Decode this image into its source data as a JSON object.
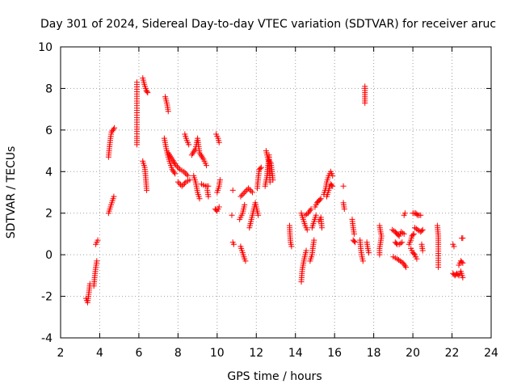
{
  "chart_data": {
    "type": "scatter",
    "title": "Day 301 of 2024, Sidereal Day-to-day VTEC variation (SDTVAR) for receiver aruc",
    "xlabel": "GPS time / hours",
    "ylabel": "SDTVAR / TECUs",
    "xlim": [
      2,
      24
    ],
    "ylim": [
      -4,
      10
    ],
    "xticks": [
      2,
      4,
      6,
      8,
      10,
      12,
      14,
      16,
      18,
      20,
      22,
      24
    ],
    "yticks": [
      -4,
      -2,
      0,
      2,
      4,
      6,
      8,
      10
    ],
    "grid": true,
    "marker": "+",
    "marker_color": "#ff0000",
    "series": [
      {
        "name": "SDTVAR",
        "segments": [
          [
            [
              3.3,
              -2.1
            ],
            [
              3.38,
              -2.3
            ],
            [
              3.45,
              -1.8
            ],
            [
              3.5,
              -1.4
            ]
          ],
          [
            [
              3.7,
              -1.5
            ],
            [
              3.75,
              -1.0
            ],
            [
              3.8,
              -0.6
            ],
            [
              3.85,
              -0.3
            ]
          ],
          [
            [
              3.8,
              0.5
            ],
            [
              3.9,
              0.7
            ]
          ],
          [
            [
              4.45,
              2.0
            ],
            [
              4.55,
              2.3
            ],
            [
              4.65,
              2.6
            ],
            [
              4.72,
              2.8
            ]
          ],
          [
            [
              4.45,
              4.7
            ],
            [
              4.5,
              5.2
            ],
            [
              4.55,
              5.6
            ],
            [
              4.6,
              5.9
            ],
            [
              4.75,
              6.1
            ]
          ],
          [
            [
              5.9,
              8.3
            ],
            [
              5.9,
              5.7
            ],
            [
              5.9,
              5.3
            ]
          ],
          [
            [
              6.2,
              8.5
            ],
            [
              6.28,
              8.2
            ],
            [
              6.38,
              7.9
            ],
            [
              6.45,
              7.8
            ]
          ],
          [
            [
              6.2,
              4.5
            ],
            [
              6.3,
              4.2
            ],
            [
              6.35,
              3.7
            ],
            [
              6.4,
              3.1
            ]
          ],
          [
            [
              7.35,
              7.6
            ],
            [
              7.45,
              7.2
            ],
            [
              7.5,
              6.9
            ]
          ],
          [
            [
              7.3,
              5.6
            ],
            [
              7.4,
              5.1
            ],
            [
              7.5,
              4.7
            ],
            [
              7.6,
              4.4
            ],
            [
              7.7,
              4.1
            ],
            [
              7.85,
              3.9
            ]
          ],
          [
            [
              7.5,
              4.9
            ],
            [
              7.7,
              4.6
            ],
            [
              7.9,
              4.3
            ],
            [
              8.1,
              4.1
            ],
            [
              8.3,
              4.0
            ],
            [
              8.5,
              3.8
            ]
          ],
          [
            [
              8.0,
              3.5
            ],
            [
              8.2,
              3.3
            ],
            [
              8.4,
              3.5
            ],
            [
              8.6,
              3.6
            ]
          ],
          [
            [
              8.35,
              5.8
            ],
            [
              8.45,
              5.5
            ],
            [
              8.55,
              5.3
            ]
          ],
          [
            [
              8.8,
              3.8
            ],
            [
              8.9,
              3.5
            ],
            [
              9.0,
              3.0
            ],
            [
              9.1,
              2.7
            ]
          ],
          [
            [
              8.7,
              4.8
            ],
            [
              8.9,
              5.1
            ],
            [
              9.0,
              5.6
            ],
            [
              9.1,
              4.9
            ],
            [
              9.3,
              4.6
            ],
            [
              9.45,
              4.3
            ]
          ],
          [
            [
              9.2,
              3.4
            ],
            [
              9.4,
              3.3
            ],
            [
              9.55,
              3.3
            ]
          ],
          [
            [
              9.55,
              2.8
            ],
            [
              9.5,
              3.1
            ]
          ],
          [
            [
              9.95,
              5.8
            ],
            [
              10.05,
              5.6
            ],
            [
              10.1,
              5.4
            ]
          ],
          [
            [
              9.9,
              2.2
            ],
            [
              10.0,
              2.1
            ],
            [
              10.1,
              2.3
            ]
          ],
          [
            [
              10.0,
              3.0
            ],
            [
              10.1,
              3.3
            ],
            [
              10.15,
              3.6
            ]
          ],
          [
            [
              10.8,
              3.1
            ]
          ],
          [
            [
              10.8,
              0.6
            ],
            [
              10.85,
              0.5
            ]
          ],
          [
            [
              10.75,
              1.9
            ]
          ],
          [
            [
              11.2,
              0.4
            ],
            [
              11.3,
              0.1
            ],
            [
              11.4,
              -0.2
            ],
            [
              11.45,
              -0.3
            ]
          ],
          [
            [
              11.15,
              1.7
            ],
            [
              11.3,
              2.0
            ],
            [
              11.4,
              2.4
            ]
          ],
          [
            [
              11.2,
              2.8
            ],
            [
              11.4,
              3.0
            ],
            [
              11.6,
              3.2
            ],
            [
              11.8,
              3.0
            ]
          ],
          [
            [
              11.65,
              1.3
            ],
            [
              11.75,
              1.7
            ],
            [
              11.85,
              2.1
            ],
            [
              11.95,
              2.5
            ],
            [
              12.1,
              1.9
            ]
          ],
          [
            [
              12.05,
              3.2
            ],
            [
              12.1,
              3.7
            ],
            [
              12.15,
              4.1
            ],
            [
              12.25,
              4.2
            ]
          ],
          [
            [
              12.45,
              3.3
            ],
            [
              12.55,
              3.8
            ],
            [
              12.6,
              4.3
            ],
            [
              12.65,
              4.8
            ],
            [
              12.7,
              3.5
            ]
          ],
          [
            [
              12.5,
              5.0
            ],
            [
              12.6,
              4.6
            ],
            [
              12.75,
              4.4
            ],
            [
              12.8,
              4.0
            ],
            [
              12.85,
              3.6
            ]
          ],
          [
            [
              13.7,
              1.4
            ],
            [
              13.72,
              1.0
            ],
            [
              13.75,
              0.6
            ],
            [
              13.8,
              0.4
            ]
          ],
          [
            [
              14.3,
              -1.3
            ],
            [
              14.35,
              -0.7
            ],
            [
              14.45,
              -0.2
            ],
            [
              14.55,
              0.2
            ]
          ],
          [
            [
              14.3,
              2.0
            ],
            [
              14.4,
              1.7
            ],
            [
              14.5,
              1.4
            ],
            [
              14.6,
              1.2
            ]
          ],
          [
            [
              14.5,
              1.9
            ],
            [
              14.65,
              2.0
            ],
            [
              14.8,
              2.2
            ]
          ],
          [
            [
              14.75,
              -0.3
            ],
            [
              14.85,
              0.0
            ],
            [
              14.9,
              0.4
            ],
            [
              14.95,
              0.7
            ]
          ],
          [
            [
              14.85,
              1.3
            ],
            [
              14.95,
              1.6
            ],
            [
              15.05,
              1.9
            ]
          ],
          [
            [
              15.0,
              2.3
            ],
            [
              15.1,
              2.5
            ],
            [
              15.2,
              2.6
            ],
            [
              15.3,
              2.7
            ]
          ],
          [
            [
              15.2,
              1.6
            ],
            [
              15.3,
              1.8
            ],
            [
              15.35,
              1.3
            ]
          ],
          [
            [
              15.45,
              2.9
            ],
            [
              15.55,
              3.2
            ],
            [
              15.6,
              3.5
            ],
            [
              15.7,
              3.8
            ],
            [
              15.8,
              4.0
            ],
            [
              15.9,
              3.8
            ]
          ],
          [
            [
              15.6,
              2.8
            ],
            [
              15.7,
              3.1
            ],
            [
              15.8,
              3.4
            ],
            [
              15.9,
              3.3
            ]
          ],
          [
            [
              16.45,
              3.3
            ]
          ],
          [
            [
              16.45,
              2.5
            ],
            [
              16.5,
              2.2
            ]
          ],
          [
            [
              16.9,
              1.7
            ],
            [
              16.95,
              1.3
            ],
            [
              17.0,
              1.0
            ]
          ],
          [
            [
              16.95,
              0.7
            ],
            [
              17.05,
              0.6
            ]
          ],
          [
            [
              17.3,
              0.7
            ],
            [
              17.35,
              0.2
            ],
            [
              17.4,
              -0.1
            ],
            [
              17.45,
              -0.3
            ]
          ],
          [
            [
              17.55,
              8.1
            ],
            [
              17.55,
              7.7
            ],
            [
              17.55,
              7.3
            ]
          ],
          [
            [
              17.65,
              0.6
            ],
            [
              17.7,
              0.3
            ],
            [
              17.75,
              0.1
            ]
          ],
          [
            [
              18.3,
              1.4
            ],
            [
              18.35,
              1.1
            ],
            [
              18.4,
              0.9
            ],
            [
              18.35,
              0.6
            ],
            [
              18.3,
              0.3
            ],
            [
              18.3,
              0.0
            ]
          ],
          [
            [
              18.95,
              1.2
            ],
            [
              19.1,
              1.1
            ],
            [
              19.2,
              1.0
            ],
            [
              19.3,
              0.9
            ],
            [
              19.4,
              1.1
            ],
            [
              19.55,
              1.0
            ]
          ],
          [
            [
              19.1,
              0.6
            ],
            [
              19.2,
              0.5
            ],
            [
              19.3,
              0.5
            ],
            [
              19.45,
              0.6
            ]
          ],
          [
            [
              19.0,
              -0.1
            ],
            [
              19.2,
              -0.2
            ],
            [
              19.35,
              -0.3
            ],
            [
              19.5,
              -0.4
            ],
            [
              19.65,
              -0.6
            ]
          ],
          [
            [
              19.55,
              1.9
            ],
            [
              19.6,
              2.0
            ]
          ],
          [
            [
              19.8,
              0.5
            ],
            [
              19.9,
              0.7
            ],
            [
              19.95,
              0.9
            ],
            [
              20.05,
              1.0
            ]
          ],
          [
            [
              19.9,
              0.3
            ],
            [
              20.0,
              0.1
            ],
            [
              20.1,
              0.0
            ],
            [
              20.2,
              -0.2
            ]
          ],
          [
            [
              20.0,
              2.0
            ],
            [
              20.15,
              2.0
            ],
            [
              20.25,
              1.9
            ],
            [
              20.4,
              1.9
            ]
          ],
          [
            [
              20.1,
              1.3
            ],
            [
              20.25,
              1.2
            ],
            [
              20.4,
              1.1
            ],
            [
              20.5,
              1.2
            ]
          ],
          [
            [
              20.45,
              0.5
            ],
            [
              20.5,
              0.2
            ]
          ],
          [
            [
              21.25,
              1.4
            ],
            [
              21.3,
              0.9
            ],
            [
              21.3,
              0.5
            ],
            [
              21.3,
              -0.6
            ]
          ],
          [
            [
              22.05,
              0.5
            ],
            [
              22.1,
              0.4
            ]
          ],
          [
            [
              22.05,
              -0.9
            ],
            [
              22.15,
              -1.0
            ],
            [
              22.25,
              -0.9
            ],
            [
              22.35,
              -1.0
            ],
            [
              22.45,
              -0.8
            ],
            [
              22.55,
              -1.1
            ]
          ],
          [
            [
              22.35,
              -0.5
            ],
            [
              22.45,
              -0.3
            ],
            [
              22.55,
              -0.4
            ]
          ],
          [
            [
              22.5,
              0.8
            ],
            [
              22.55,
              0.8
            ]
          ]
        ]
      }
    ]
  }
}
